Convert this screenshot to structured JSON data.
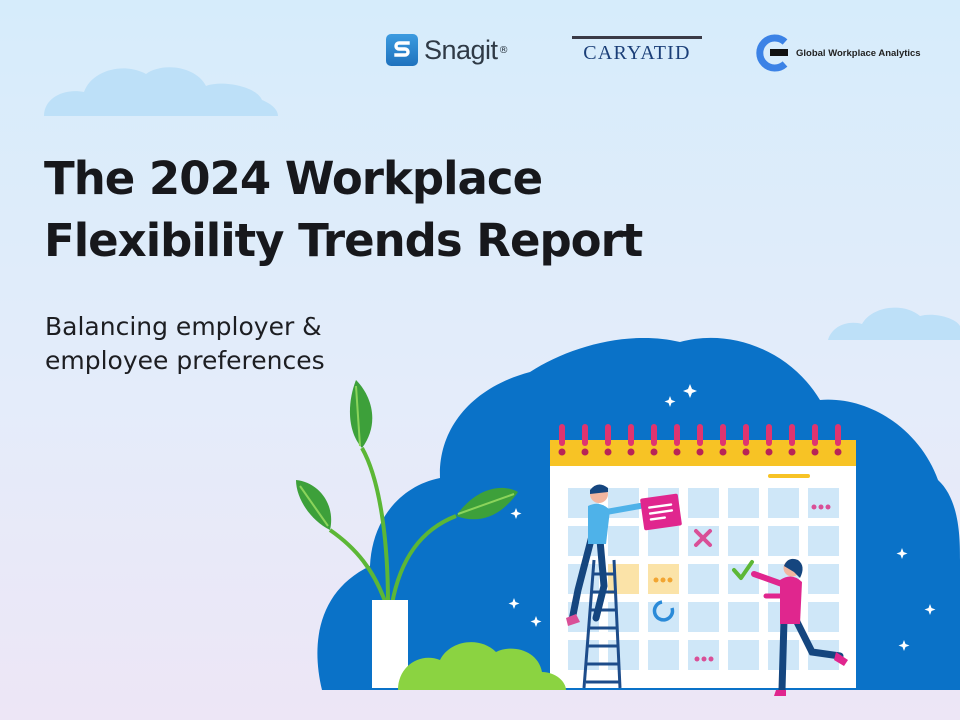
{
  "logos": {
    "snagit": {
      "name": "Snagit",
      "mark": "S",
      "registered": "®"
    },
    "caryatid": {
      "name": "CARYATID"
    },
    "gwa": {
      "name": "Global Workplace Analytics"
    }
  },
  "title_lines": [
    "The 2024 Workplace",
    "Flexibility Trends Report"
  ],
  "subtitle_lines": [
    "Balancing employer &",
    "employee preferences"
  ],
  "illustration": {
    "icons": [
      "cloud-icon",
      "calendar-icon",
      "plant-icon",
      "ladder-icon",
      "sticky-note-icon",
      "x-mark-icon",
      "check-mark-icon",
      "refresh-icon",
      "sparkle-icon"
    ]
  },
  "colors": {
    "brand_blue": "#0a72c8",
    "calendar_header": "#f7c325",
    "calendar_rings": "#e0346f",
    "cell": "#cfe7f8",
    "highlight_cell": "#fbe3a8",
    "plant_green": "#5cb736",
    "accent_pink": "#e0268e"
  }
}
